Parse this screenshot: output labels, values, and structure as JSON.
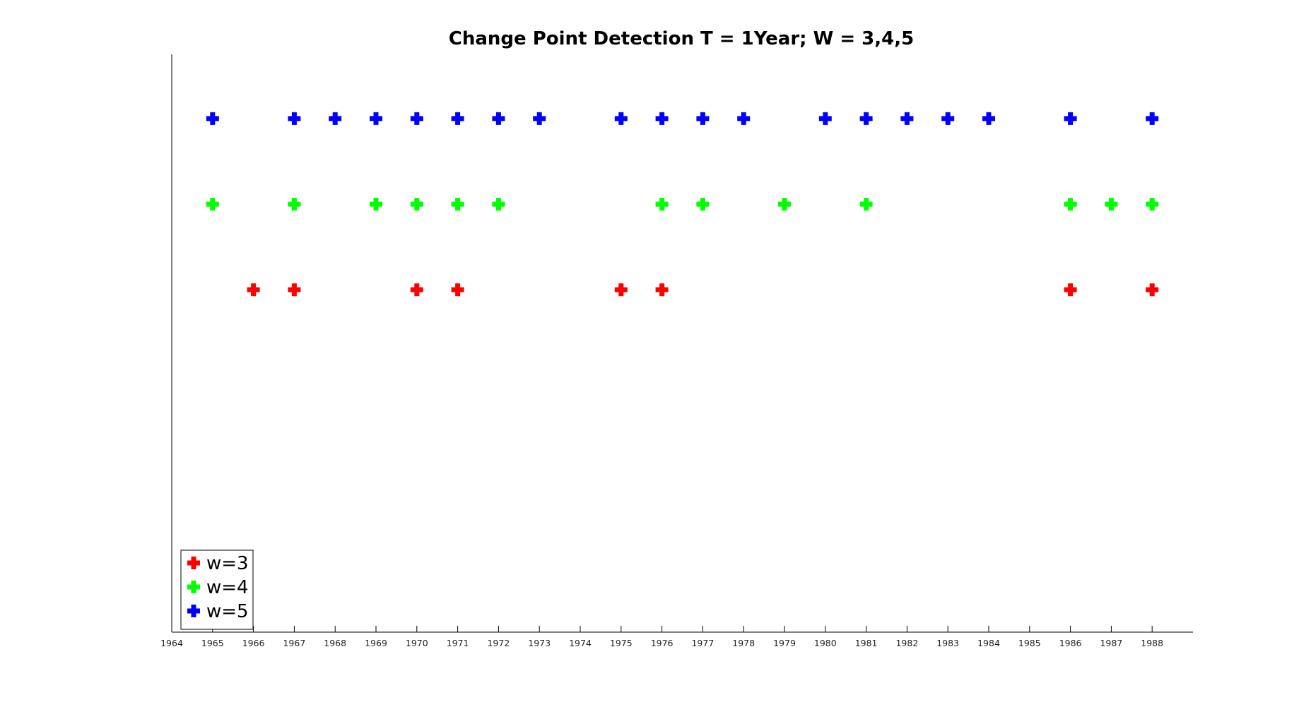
{
  "chart_data": {
    "type": "scatter",
    "title": "Change Point Detection T = 1Year;  W = 3,4,5",
    "xlabel": "",
    "ylabel": "",
    "xlim": [
      1964,
      1989
    ],
    "x_ticks": [
      1964,
      1965,
      1966,
      1967,
      1968,
      1969,
      1970,
      1971,
      1972,
      1973,
      1974,
      1975,
      1976,
      1977,
      1978,
      1979,
      1980,
      1981,
      1982,
      1983,
      1984,
      1985,
      1986,
      1987,
      1988
    ],
    "ylim": [
      0,
      6.75
    ],
    "grid": false,
    "marker": "plus",
    "legend_position": "bottom-left",
    "series": [
      {
        "name": "w=3",
        "color": "#ff0000",
        "y": 4,
        "x": [
          1966,
          1967,
          1970,
          1971,
          1975,
          1976,
          1986,
          1988
        ]
      },
      {
        "name": "w=4",
        "color": "#00ff00",
        "y": 5,
        "x": [
          1965,
          1967,
          1969,
          1970,
          1971,
          1972,
          1976,
          1977,
          1979,
          1981,
          1986,
          1987,
          1988
        ]
      },
      {
        "name": "w=5",
        "color": "#0000ff",
        "y": 6,
        "x": [
          1965,
          1967,
          1968,
          1969,
          1970,
          1971,
          1972,
          1973,
          1975,
          1976,
          1977,
          1978,
          1980,
          1981,
          1982,
          1983,
          1984,
          1986,
          1988
        ]
      }
    ]
  }
}
